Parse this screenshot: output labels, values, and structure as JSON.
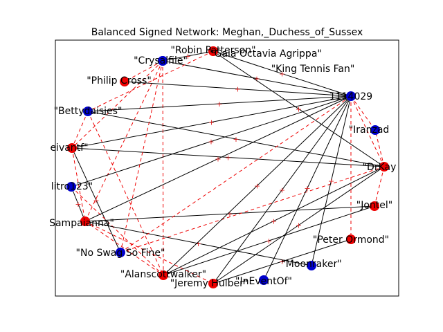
{
  "title": "Balanced Signed Network: Meghan,_Duchess_of_Sussex",
  "colors": {
    "groupA": "#0000cc",
    "groupB": "#ee0000",
    "positive": "#000000",
    "negative": "#ee0000"
  },
  "chart_data": {
    "type": "network",
    "nodes": [
      {
        "id": "robin",
        "label": "\"Robin Patterson\"",
        "group": "B"
      },
      {
        "id": "gaia",
        "label": "\"Gaia Octavia Agrippa\"",
        "group": "B"
      },
      {
        "id": "crys",
        "label": "\"Crysalfile\"",
        "group": "A"
      },
      {
        "id": "king",
        "label": "\"King Tennis Fan\"",
        "group": "A"
      },
      {
        "id": "philip",
        "label": "\"Philip Cross\"",
        "group": "B"
      },
      {
        "id": "n1114029",
        "label": "1114029",
        "group": "A"
      },
      {
        "id": "betty",
        "label": "\"Bettydaisies\"",
        "group": "A"
      },
      {
        "id": "iranzad",
        "label": "\"Iranzad",
        "group": "A"
      },
      {
        "id": "eivantf",
        "label": "eivantf\"",
        "group": "B"
      },
      {
        "id": "drkay",
        "label": "\"DrKay",
        "group": "B"
      },
      {
        "id": "litro",
        "label": "litro123\"",
        "group": "A"
      },
      {
        "id": "jontel",
        "label": "\"Jontel\"",
        "group": "B"
      },
      {
        "id": "sampa",
        "label": "Sampaianna\"",
        "group": "B"
      },
      {
        "id": "peter",
        "label": "\"Peter Ormond\"",
        "group": "B"
      },
      {
        "id": "noswag",
        "label": "\"No Swag So Fine\"",
        "group": "A"
      },
      {
        "id": "moon",
        "label": "\"Moonraker\"",
        "group": "A"
      },
      {
        "id": "alans",
        "label": "\"Alanscottwalker\"",
        "group": "B"
      },
      {
        "id": "inevent",
        "label": "\"InEventOf\"",
        "group": "A"
      },
      {
        "id": "jeremy",
        "label": "\"Jeremy Hulber\"",
        "group": "B"
      }
    ],
    "edges": [
      {
        "s": "crys",
        "t": "philip",
        "sign": "-"
      },
      {
        "s": "crys",
        "t": "n1114029",
        "sign": "+"
      },
      {
        "s": "crys",
        "t": "alans",
        "sign": "-"
      },
      {
        "s": "crys",
        "t": "sampa",
        "sign": "-"
      },
      {
        "s": "crys",
        "t": "eivantf",
        "sign": "-"
      },
      {
        "s": "robin",
        "t": "king",
        "sign": "+"
      },
      {
        "s": "robin",
        "t": "gaia",
        "sign": "+"
      },
      {
        "s": "robin",
        "t": "n1114029",
        "sign": "+"
      },
      {
        "s": "robin",
        "t": "betty",
        "sign": "-"
      },
      {
        "s": "robin",
        "t": "drkay",
        "sign": "+"
      },
      {
        "s": "philip",
        "t": "n1114029",
        "sign": "+"
      },
      {
        "s": "betty",
        "t": "n1114029",
        "sign": "+"
      },
      {
        "s": "betty",
        "t": "eivantf",
        "sign": "-"
      },
      {
        "s": "betty",
        "t": "alans",
        "sign": "-"
      },
      {
        "s": "betty",
        "t": "drkay",
        "sign": "+"
      },
      {
        "s": "eivantf",
        "t": "n1114029",
        "sign": "+"
      },
      {
        "s": "eivantf",
        "t": "drkay",
        "sign": "+"
      },
      {
        "s": "eivantf",
        "t": "noswag",
        "sign": "+"
      },
      {
        "s": "eivantf",
        "t": "sampa",
        "sign": "-"
      },
      {
        "s": "litro",
        "t": "n1114029",
        "sign": "+"
      },
      {
        "s": "litro",
        "t": "sampa",
        "sign": "+"
      },
      {
        "s": "litro",
        "t": "alans",
        "sign": "-"
      },
      {
        "s": "sampa",
        "t": "n1114029",
        "sign": "+"
      },
      {
        "s": "sampa",
        "t": "jontel",
        "sign": "+"
      },
      {
        "s": "sampa",
        "t": "moon",
        "sign": "+"
      },
      {
        "s": "sampa",
        "t": "alans",
        "sign": "-"
      },
      {
        "s": "sampa",
        "t": "jeremy",
        "sign": "-"
      },
      {
        "s": "noswag",
        "t": "n1114029",
        "sign": "-"
      },
      {
        "s": "noswag",
        "t": "drkay",
        "sign": "-"
      },
      {
        "s": "alans",
        "t": "n1114029",
        "sign": "+"
      },
      {
        "s": "alans",
        "t": "drkay",
        "sign": "+"
      },
      {
        "s": "alans",
        "t": "jontel",
        "sign": "+"
      },
      {
        "s": "jeremy",
        "t": "n1114029",
        "sign": "+"
      },
      {
        "s": "jeremy",
        "t": "drkay",
        "sign": "+"
      },
      {
        "s": "jeremy",
        "t": "peter",
        "sign": "+"
      },
      {
        "s": "inevent",
        "t": "n1114029",
        "sign": "+"
      },
      {
        "s": "moon",
        "t": "n1114029",
        "sign": "+"
      },
      {
        "s": "n1114029",
        "t": "drkay",
        "sign": "-"
      },
      {
        "s": "n1114029",
        "t": "iranzad",
        "sign": "-"
      },
      {
        "s": "n1114029",
        "t": "peter",
        "sign": "-"
      },
      {
        "s": "drkay",
        "t": "jontel",
        "sign": "-"
      },
      {
        "s": "drkay",
        "t": "iranzad",
        "sign": "-"
      },
      {
        "s": "crys",
        "t": "noswag",
        "sign": "-"
      }
    ]
  }
}
